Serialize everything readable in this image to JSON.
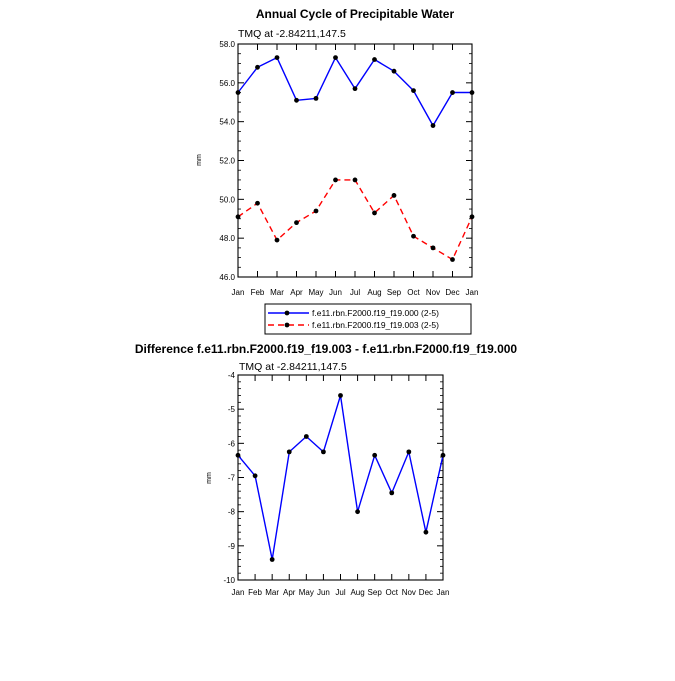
{
  "chart_data": [
    {
      "type": "line",
      "title": "Annual Cycle of Precipitable Water",
      "subtitle": "TMQ at -2.84211,147.5",
      "ylabel": "mm",
      "xlabel": "",
      "categories": [
        "Jan",
        "Feb",
        "Mar",
        "Apr",
        "May",
        "Jun",
        "Jul",
        "Aug",
        "Sep",
        "Oct",
        "Nov",
        "Dec",
        "Jan"
      ],
      "ylim": [
        46.0,
        58.0
      ],
      "yticks": [
        "46.0",
        "48.0",
        "50.0",
        "52.0",
        "54.0",
        "56.0",
        "58.0"
      ],
      "grid": false,
      "legend_position": "bottom",
      "series": [
        {
          "name": "f.e11.rbn.F2000.f19_f19.000 (2-5)",
          "color": "#0000ff",
          "dash": "solid",
          "values": [
            55.5,
            56.8,
            57.3,
            55.1,
            55.2,
            57.3,
            55.7,
            57.2,
            56.6,
            55.6,
            53.8,
            55.5,
            55.5
          ]
        },
        {
          "name": "f.e11.rbn.F2000.f19_f19.003 (2-5)",
          "color": "#ff0000",
          "dash": "dashed",
          "values": [
            49.1,
            49.8,
            47.9,
            48.8,
            49.4,
            51.0,
            51.0,
            49.3,
            50.2,
            48.1,
            47.5,
            46.9,
            49.1
          ]
        }
      ]
    },
    {
      "type": "line",
      "title": "Difference f.e11.rbn.F2000.f19_f19.003 - f.e11.rbn.F2000.f19_f19.000",
      "subtitle": "TMQ at -2.84211,147.5",
      "ylabel": "mm",
      "xlabel": "",
      "categories": [
        "Jan",
        "Feb",
        "Mar",
        "Apr",
        "May",
        "Jun",
        "Jul",
        "Aug",
        "Sep",
        "Oct",
        "Nov",
        "Dec",
        "Jan"
      ],
      "ylim": [
        -10,
        -4
      ],
      "yticks": [
        "-10",
        "-9",
        "-8",
        "-7",
        "-6",
        "-5",
        "-4"
      ],
      "grid": false,
      "series": [
        {
          "color": "#0000ff",
          "dash": "solid",
          "values": [
            -6.35,
            -6.95,
            -9.4,
            -6.25,
            -5.8,
            -6.25,
            -4.6,
            -8.0,
            -6.35,
            -7.45,
            -6.25,
            -8.6,
            -6.35
          ]
        }
      ]
    }
  ]
}
